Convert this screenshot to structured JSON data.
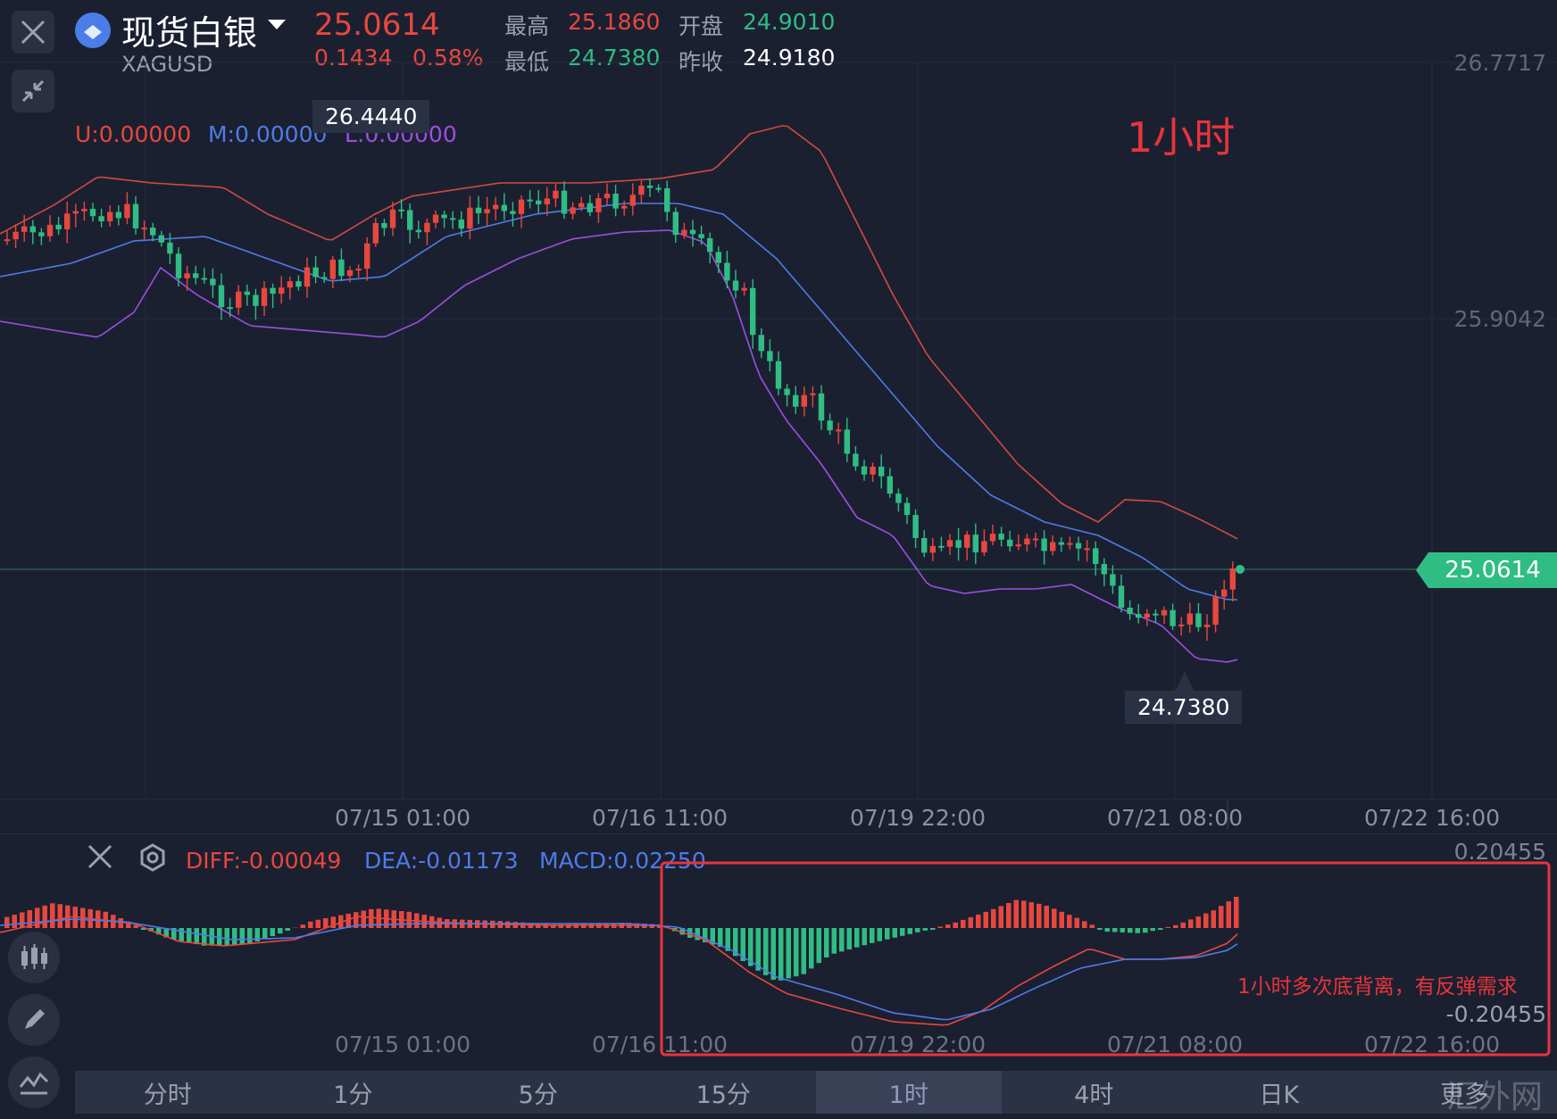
{
  "header": {
    "name": "现货白银",
    "symbol": "XAGUSD",
    "price": "25.0614",
    "change": "0.1434",
    "change_pct": "0.58%",
    "high_label": "最高",
    "high": "25.1860",
    "low_label": "最低",
    "low": "24.7380",
    "open_label": "开盘",
    "open": "24.9010",
    "prev_close_label": "昨收",
    "prev_close": "24.9180"
  },
  "main_chart": {
    "boll_u": "U:0.00000",
    "boll_m": "M:0.00000",
    "boll_l": "L:0.00000",
    "period_label": "1小时",
    "y_ticks": [
      "26.7717",
      "25.9042"
    ],
    "current_price_tag": "25.0614",
    "max_tip": "26.4440",
    "min_tip": "24.7380",
    "x_ticks": [
      "07/15 01:00",
      "07/16 11:00",
      "07/19 22:00",
      "07/21 08:00",
      "07/22 16:00"
    ]
  },
  "macd_panel": {
    "diff": "DIFF:-0.00049",
    "dea": "DEA:-0.01173",
    "macd": "MACD:0.02250",
    "y_top": "0.20455",
    "y_bottom": "-0.20455",
    "annotation": "1小时多次底背离，有反弹需求",
    "x_ticks": [
      "07/15 01:00",
      "07/16 11:00",
      "07/19 22:00",
      "07/21 08:00",
      "07/22 16:00"
    ]
  },
  "tabs": [
    {
      "label": "分时"
    },
    {
      "label": "1分"
    },
    {
      "label": "5分"
    },
    {
      "label": "15分"
    },
    {
      "label": "1时"
    },
    {
      "label": "4时"
    },
    {
      "label": "日K"
    },
    {
      "label": "更多"
    }
  ],
  "watermark": "汇外网",
  "colors": {
    "up": "#e8473e",
    "down": "#2fbd83",
    "mid": "#4f7be8",
    "lower": "#9b4fe0",
    "bg": "#1b2031"
  }
}
